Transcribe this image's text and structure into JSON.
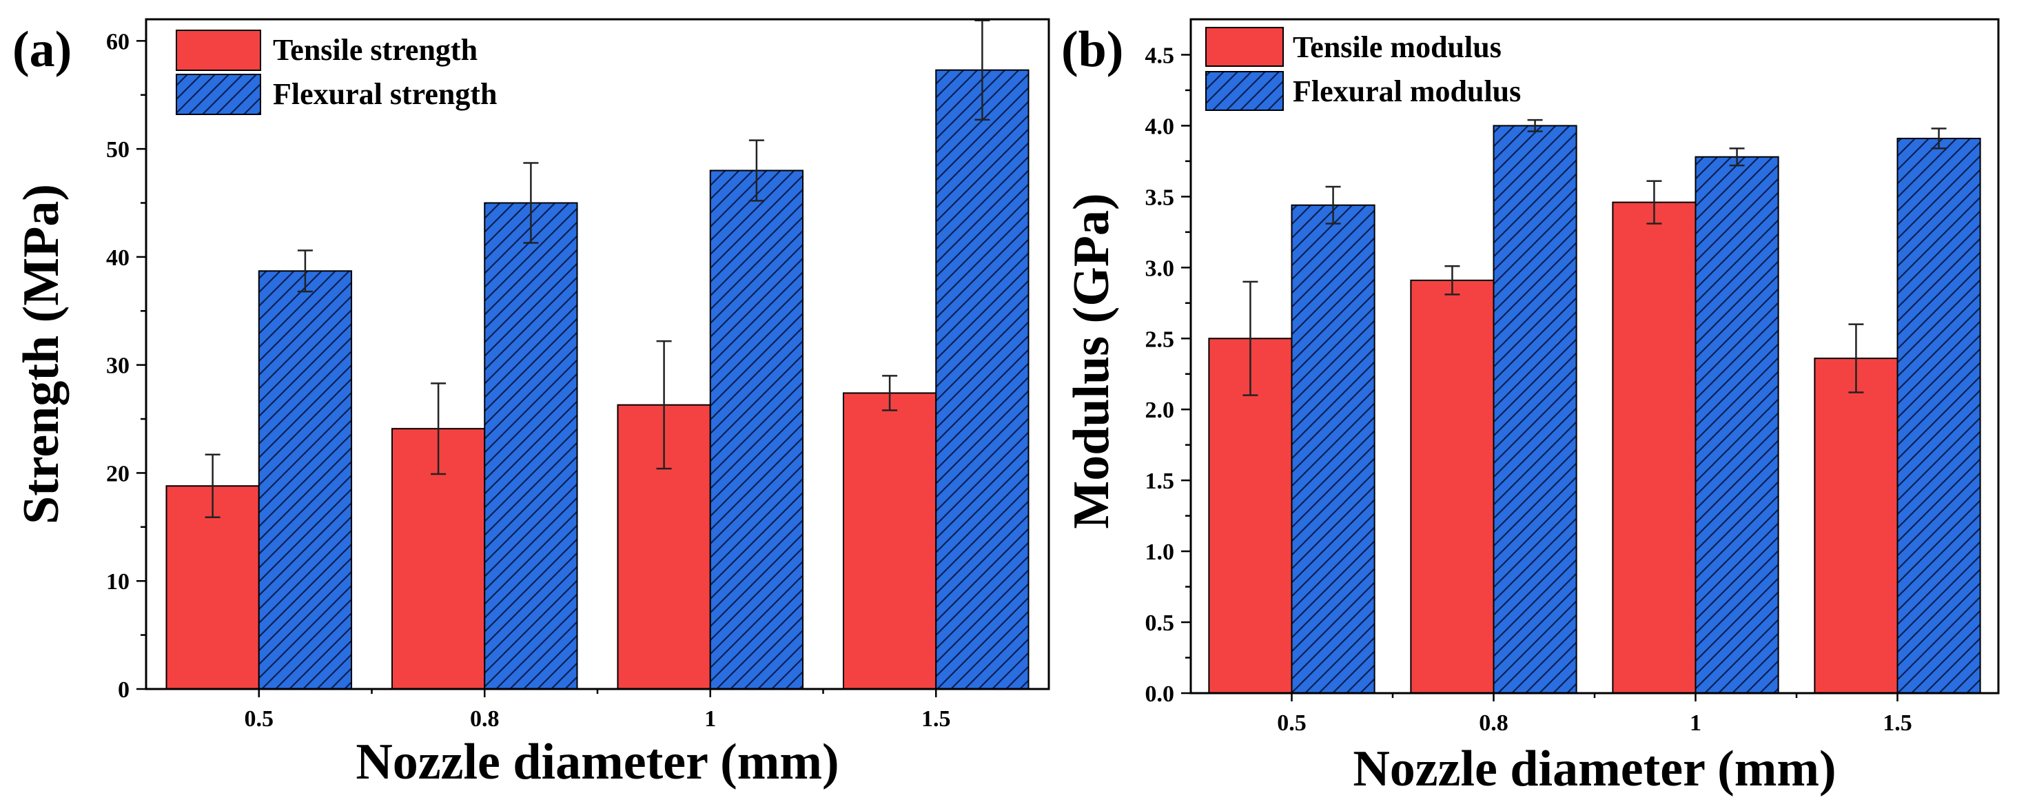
{
  "chart_data": [
    {
      "type": "bar",
      "panel_label": "(a)",
      "categories": [
        "0.5",
        "0.8",
        "1",
        "1.5"
      ],
      "xlabel": "Nozzle diameter (mm)",
      "ylabel": "Strength (MPa)",
      "ylim": [
        0,
        62
      ],
      "yticks": [
        0,
        10,
        20,
        30,
        40,
        50,
        60
      ],
      "ytick_labels": [
        "0",
        "10",
        "20",
        "30",
        "40",
        "50",
        "60"
      ],
      "legend_position": "top-left",
      "series": [
        {
          "name": "Tensile strength",
          "color": "#f44242",
          "hatch": false,
          "values": [
            18.8,
            24.1,
            26.3,
            27.4
          ],
          "errors": [
            2.9,
            4.2,
            5.9,
            1.6
          ]
        },
        {
          "name": "Flexural strength",
          "color": "#2a6ee0",
          "hatch": true,
          "values": [
            38.7,
            45.0,
            48.0,
            57.3
          ],
          "errors": [
            1.9,
            3.7,
            2.8,
            4.6
          ]
        }
      ]
    },
    {
      "type": "bar",
      "panel_label": "(b)",
      "categories": [
        "0.5",
        "0.8",
        "1",
        "1.5"
      ],
      "xlabel": "Nozzle diameter (mm)",
      "ylabel": "Modulus (GPa)",
      "ylim": [
        0,
        4.75
      ],
      "yticks": [
        0,
        0.5,
        1.0,
        1.5,
        2.0,
        2.5,
        3.0,
        3.5,
        4.0,
        4.5
      ],
      "ytick_labels": [
        "0.0",
        "0.5",
        "1.0",
        "1.5",
        "2.0",
        "2.5",
        "3.0",
        "3.5",
        "4.0",
        "4.5"
      ],
      "legend_position": "top-left",
      "series": [
        {
          "name": "Tensile modulus",
          "color": "#f44242",
          "hatch": false,
          "values": [
            2.5,
            2.91,
            3.46,
            2.36
          ],
          "errors": [
            0.4,
            0.1,
            0.15,
            0.24
          ]
        },
        {
          "name": "Flexural modulus",
          "color": "#2a6ee0",
          "hatch": true,
          "values": [
            3.44,
            4.0,
            3.78,
            3.91
          ],
          "errors": [
            0.13,
            0.04,
            0.06,
            0.07
          ]
        }
      ]
    }
  ]
}
